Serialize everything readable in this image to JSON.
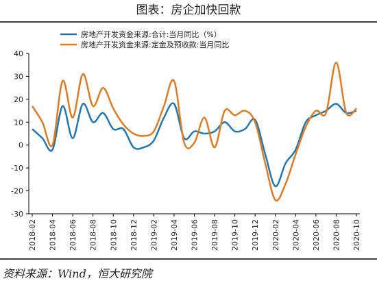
{
  "chart_data": {
    "type": "line",
    "title": "图表：房企加快回款",
    "source": "资料来源：Wind，恒大研究院",
    "categories": [
      "2018-02",
      null,
      "2018-04",
      null,
      "2018-06",
      null,
      "2018-08",
      null,
      "2018-10",
      null,
      "2018-12",
      null,
      "2019-02",
      null,
      "2019-04",
      null,
      "2019-06",
      null,
      "2019-08",
      null,
      "2019-10",
      null,
      "2019-12",
      null,
      "2020-02",
      null,
      "2020-04",
      null,
      "2020-06",
      null,
      "2020-08",
      null,
      "2020-10"
    ],
    "series": [
      {
        "name": "房地产开发资金来源:合计:当月同比（%）",
        "color": "#1f77b4",
        "values": [
          7,
          3,
          -2,
          17,
          3,
          18,
          10,
          14,
          7,
          7,
          -1,
          -1,
          2,
          12,
          18,
          3,
          6,
          5,
          6,
          10,
          6,
          7,
          11,
          -4,
          -18,
          -8,
          -2,
          10,
          13,
          15,
          18,
          14,
          15
        ]
      },
      {
        "name": "房地产开发资金来源:定金及预收款:当月同比",
        "color": "#e07b20",
        "values": [
          17,
          10,
          0,
          28,
          12,
          31,
          17,
          25,
          16,
          9,
          5,
          4,
          6,
          17,
          28,
          1,
          1,
          12,
          -1,
          15,
          13,
          15,
          10,
          -8,
          -24,
          -17,
          -4,
          8,
          15,
          14,
          36,
          14,
          16
        ]
      }
    ],
    "ylim": [
      -30,
      40
    ],
    "yticks": [
      -30,
      -20,
      -10,
      0,
      10,
      20,
      30,
      40
    ]
  }
}
